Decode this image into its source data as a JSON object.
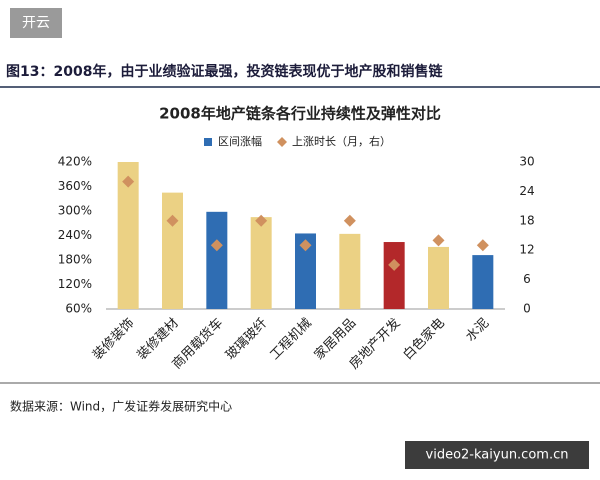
{
  "header": {
    "badge": "开云",
    "caption": "图13：2008年，由于业绩验证最强，投资链表现优于地产股和销售链"
  },
  "chart_data": {
    "type": "bar",
    "title": "2008年地产链条各行业持续性及弹性对比",
    "categories": [
      "装修装饰",
      "装修建材",
      "商用载货车",
      "玻璃玻纤",
      "工程机械",
      "家居用品",
      "房地产开发",
      "白色家电",
      "水泥"
    ],
    "series": [
      {
        "name": "区间涨幅",
        "type": "bar",
        "color": "#2f6db3",
        "colors": [
          "#ebd184",
          "#ebd184",
          "#2f6db3",
          "#ebd184",
          "#2f6db3",
          "#ebd184",
          "#b3282a",
          "#ebd184",
          "#2f6db3"
        ],
        "values": [
          420,
          345,
          298,
          285,
          245,
          244,
          224,
          212,
          192
        ]
      },
      {
        "name": "上涨时长（月，右）",
        "type": "scatter",
        "marker": "diamond",
        "color": "#d0915f",
        "axis": "y2",
        "values": [
          26,
          18,
          13,
          18,
          13,
          18,
          9,
          14,
          13
        ]
      }
    ],
    "ylim": [
      60,
      420
    ],
    "yticks": [
      {
        "value": 60,
        "label": "60%"
      },
      {
        "value": 120,
        "label": "120%"
      },
      {
        "value": 180,
        "label": "180%"
      },
      {
        "value": 240,
        "label": "240%"
      },
      {
        "value": 300,
        "label": "300%"
      },
      {
        "value": 360,
        "label": "360%"
      },
      {
        "value": 420,
        "label": "420%"
      }
    ],
    "y2lim": [
      0,
      30
    ],
    "y2ticks": [
      0,
      6,
      12,
      18,
      24,
      30
    ],
    "grid": false,
    "legend": "top"
  },
  "footer": {
    "source": "数据来源：Wind，广发证券发展研究中心",
    "watermark": "video2-kaiyun.com.cn"
  }
}
